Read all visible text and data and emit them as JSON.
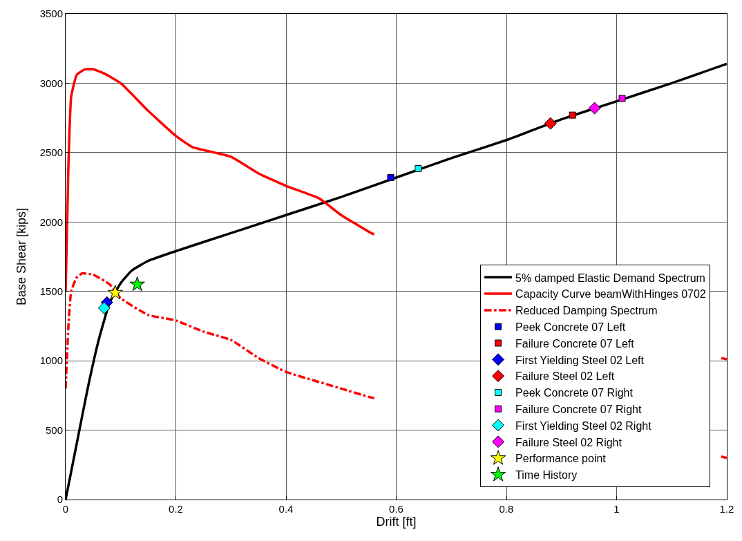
{
  "chart_data": {
    "type": "line",
    "xlabel": "Drift [ft]",
    "ylabel": "Base Shear [kips]",
    "xlim": [
      0,
      1.2
    ],
    "xticks": [
      0,
      0.2,
      0.4,
      0.6,
      0.8,
      1,
      1.2
    ],
    "ylim": [
      0,
      3500
    ],
    "yticks": [
      0,
      500,
      1000,
      1500,
      2000,
      2500,
      3000,
      3500
    ],
    "grid": true,
    "legend": "bottom right",
    "series": [
      {
        "name": "5% damped Elastic Demand Spectrum",
        "color": "#000000",
        "line_style": "solid",
        "x": [
          0,
          0.02,
          0.04,
          0.06,
          0.08,
          0.1,
          0.12,
          0.15,
          0.2,
          0.3,
          0.4,
          0.5,
          0.6,
          0.7,
          0.8,
          0.9,
          1.0,
          1.1,
          1.2
        ],
        "values": [
          0,
          400,
          800,
          1150,
          1420,
          1560,
          1650,
          1720,
          1790,
          1920,
          2050,
          2180,
          2320,
          2460,
          2590,
          2740,
          2870,
          3000,
          3140
        ]
      },
      {
        "name": "Capacity Curve beamWithHinges 0702",
        "color": "#ff0000",
        "line_style": "solid",
        "x": [
          0,
          0.005,
          0.01,
          0.02,
          0.035,
          0.05,
          0.07,
          0.1,
          0.15,
          0.2,
          0.23,
          0.3,
          0.35,
          0.4,
          0.46,
          0.5,
          0.55,
          0.56,
          0.9,
          1.19,
          1.2
        ],
        "values": [
          1500,
          2400,
          2900,
          3060,
          3100,
          3100,
          3070,
          3000,
          2800,
          2620,
          2540,
          2470,
          2350,
          2260,
          2170,
          2050,
          1930,
          1910,
          null,
          1020,
          1010
        ]
      },
      {
        "name": "Reduced Damping Spectrum",
        "color": "#ff0000",
        "line_style": "dashdot",
        "x": [
          0,
          0.005,
          0.01,
          0.02,
          0.03,
          0.05,
          0.08,
          0.1,
          0.15,
          0.2,
          0.25,
          0.3,
          0.35,
          0.4,
          0.5,
          0.55,
          0.56,
          0.9,
          1.19,
          1.2
        ],
        "values": [
          800,
          1250,
          1500,
          1600,
          1630,
          1620,
          1550,
          1450,
          1330,
          1290,
          1210,
          1150,
          1020,
          920,
          800,
          740,
          730,
          null,
          310,
          300
        ]
      },
      {
        "name": "Peek Concrete 07 Left",
        "type": "scatter",
        "marker": "square",
        "color": "#0000ff",
        "x": [
          0.59
        ],
        "values": [
          2320
        ]
      },
      {
        "name": "Failure Concrete 07 Left",
        "type": "scatter",
        "marker": "square",
        "color": "#ff0000",
        "x": [
          0.92
        ],
        "values": [
          2770
        ]
      },
      {
        "name": "First Yielding Steel 02 Left",
        "type": "scatter",
        "marker": "diamond",
        "color": "#0000ff",
        "x": [
          0.075
        ],
        "values": [
          1420
        ]
      },
      {
        "name": "Failure Steel 02 Left",
        "type": "scatter",
        "marker": "diamond",
        "color": "#ff0000",
        "x": [
          0.88
        ],
        "values": [
          2710
        ]
      },
      {
        "name": "Peek Concrete 07 Right",
        "type": "scatter",
        "marker": "square",
        "color": "#00ffff",
        "x": [
          0.64
        ],
        "values": [
          2385
        ]
      },
      {
        "name": "Failure Concrete 07 Right",
        "type": "scatter",
        "marker": "square",
        "color": "#ff00ff",
        "x": [
          1.01
        ],
        "values": [
          2890
        ]
      },
      {
        "name": "First Yielding Steel 02 Right",
        "type": "scatter",
        "marker": "diamond",
        "color": "#00ffff",
        "x": [
          0.07
        ],
        "values": [
          1380
        ]
      },
      {
        "name": "Failure Steel 02 Right",
        "type": "scatter",
        "marker": "diamond",
        "color": "#ff00ff",
        "x": [
          0.96
        ],
        "values": [
          2820
        ]
      },
      {
        "name": "Performance point",
        "type": "scatter",
        "marker": "star",
        "color": "#ffff00",
        "x": [
          0.09
        ],
        "values": [
          1490
        ]
      },
      {
        "name": "Time History",
        "type": "scatter",
        "marker": "star",
        "color": "#00ff00",
        "x": [
          0.13
        ],
        "values": [
          1550
        ]
      }
    ]
  }
}
